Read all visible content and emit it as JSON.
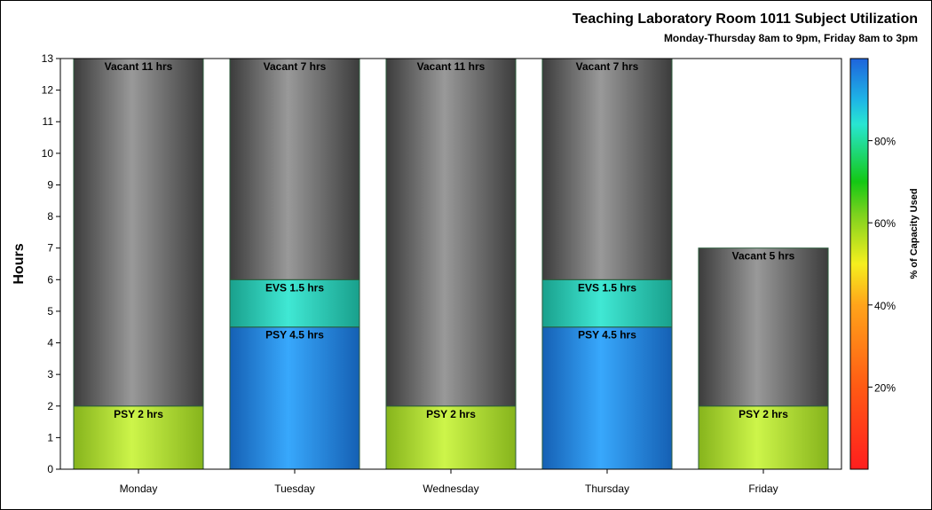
{
  "chart_data": {
    "type": "bar",
    "title": "Teaching Laboratory Room 1011 Subject Utilization",
    "subtitle": "Monday-Thursday 8am to 9pm, Friday 8am to 3pm",
    "xlabel": "",
    "ylabel": "Hours",
    "ylim": [
      0,
      13
    ],
    "yticks": [
      0,
      1,
      2,
      3,
      4,
      5,
      6,
      7,
      8,
      9,
      10,
      11,
      12,
      13
    ],
    "categories": [
      "Monday",
      "Tuesday",
      "Wednesday",
      "Thursday",
      "Friday"
    ],
    "stacked": true,
    "bars": [
      {
        "category": "Monday",
        "segments": [
          {
            "subject": "PSY",
            "hours": 2,
            "label": "PSY 2 hrs",
            "color_scheme": "lime"
          },
          {
            "subject": "Vacant",
            "hours": 11,
            "label": "Vacant 11 hrs",
            "color_scheme": "gray"
          }
        ]
      },
      {
        "category": "Tuesday",
        "segments": [
          {
            "subject": "PSY",
            "hours": 4.5,
            "label": "PSY 4.5 hrs",
            "color_scheme": "blue"
          },
          {
            "subject": "EVS",
            "hours": 1.5,
            "label": "EVS 1.5 hrs",
            "color_scheme": "teal"
          },
          {
            "subject": "Vacant",
            "hours": 7,
            "label": "Vacant 7 hrs",
            "color_scheme": "gray"
          }
        ]
      },
      {
        "category": "Wednesday",
        "segments": [
          {
            "subject": "PSY",
            "hours": 2,
            "label": "PSY 2 hrs",
            "color_scheme": "lime"
          },
          {
            "subject": "Vacant",
            "hours": 11,
            "label": "Vacant 11 hrs",
            "color_scheme": "gray"
          }
        ]
      },
      {
        "category": "Thursday",
        "segments": [
          {
            "subject": "PSY",
            "hours": 4.5,
            "label": "PSY 4.5 hrs",
            "color_scheme": "blue"
          },
          {
            "subject": "EVS",
            "hours": 1.5,
            "label": "EVS 1.5 hrs",
            "color_scheme": "teal"
          },
          {
            "subject": "Vacant",
            "hours": 7,
            "label": "Vacant 7 hrs",
            "color_scheme": "gray"
          }
        ]
      },
      {
        "category": "Friday",
        "segments": [
          {
            "subject": "PSY",
            "hours": 2,
            "label": "PSY 2 hrs",
            "color_scheme": "lime"
          },
          {
            "subject": "Vacant",
            "hours": 5,
            "label": "Vacant 5 hrs",
            "color_scheme": "gray"
          }
        ]
      }
    ],
    "colorbar": {
      "title": "% of Capacity Used",
      "range": [
        0,
        100
      ],
      "ticks": [
        20,
        40,
        60,
        80
      ],
      "tick_labels": [
        "20%",
        "40%",
        "60%",
        "80%"
      ],
      "stops": [
        {
          "value": 0,
          "color": "#ff1e1e"
        },
        {
          "value": 20,
          "color": "#ff5a14"
        },
        {
          "value": 40,
          "color": "#ffa41a"
        },
        {
          "value": 50,
          "color": "#f5ef1e"
        },
        {
          "value": 62,
          "color": "#7dd21e"
        },
        {
          "value": 70,
          "color": "#14c814"
        },
        {
          "value": 84,
          "color": "#28e6d2"
        },
        {
          "value": 90,
          "color": "#1eb4e6"
        },
        {
          "value": 100,
          "color": "#1e64dc"
        }
      ]
    },
    "palettes": {
      "gray": {
        "edge": "#3c3c3c",
        "mid": "#999999"
      },
      "lime": {
        "edge": "#86b41c",
        "mid": "#cdf54a"
      },
      "blue": {
        "edge": "#1560b4",
        "mid": "#38a8fc"
      },
      "teal": {
        "edge": "#19a08c",
        "mid": "#40e8d4"
      }
    }
  }
}
